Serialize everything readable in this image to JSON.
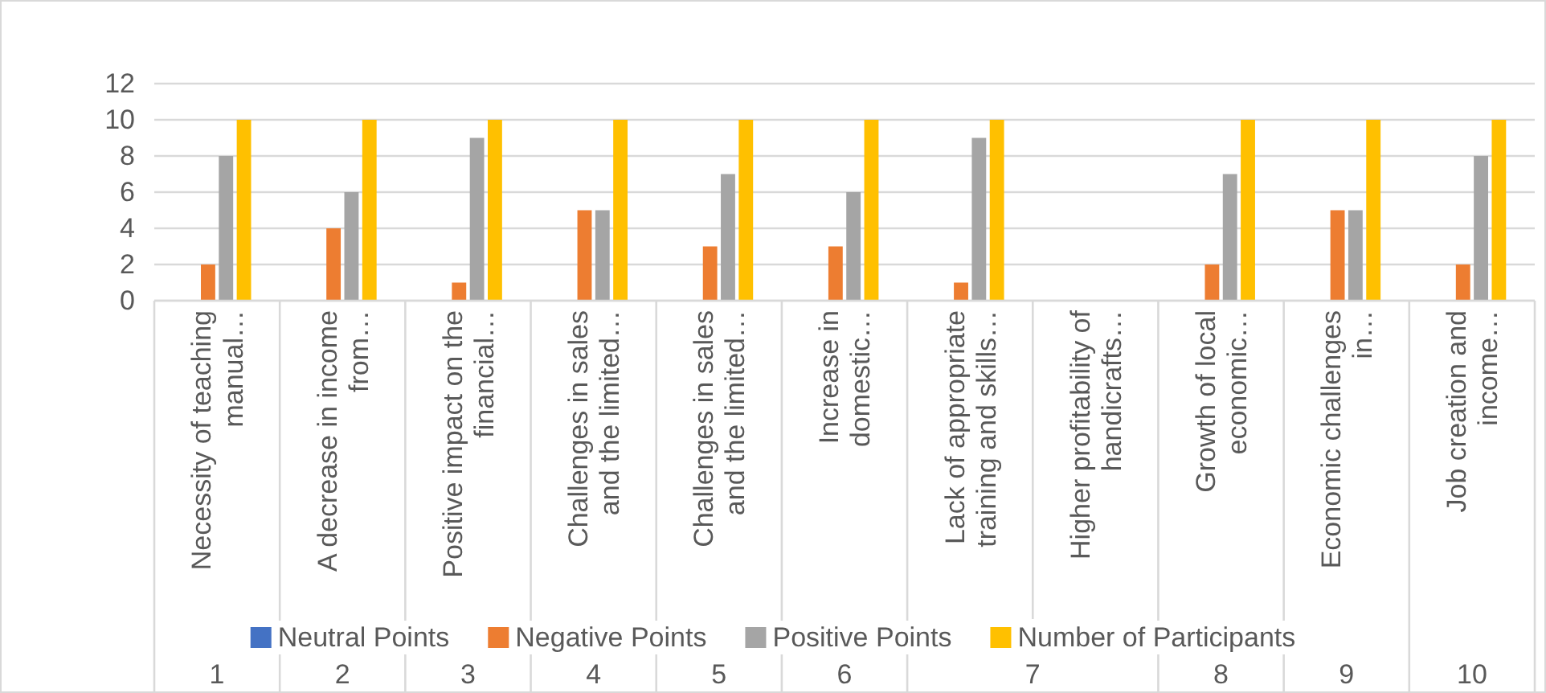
{
  "chart_data": {
    "type": "bar",
    "categories": [
      "Necessity of teaching manual…",
      "A decrease in income from…",
      "Positive impact on the financial…",
      "Challenges in sales and the limited…",
      "Challenges in sales and the limited…",
      "Increase in domestic…",
      "Lack of appropriate training and skills…",
      "Higher profitability of handicrafts…",
      "Growth of local economic…",
      "Economic challenges in…",
      "Job creation and income…"
    ],
    "series": [
      {
        "name": "Neutral Points",
        "color": "#4472c4",
        "values": [
          0,
          0,
          0,
          0,
          0,
          0,
          0,
          null,
          0,
          0,
          0
        ]
      },
      {
        "name": "Negative Points",
        "color": "#ed7d31",
        "values": [
          2,
          4,
          1,
          5,
          3,
          3,
          1,
          null,
          2,
          5,
          2
        ]
      },
      {
        "name": "Positive Points",
        "color": "#a5a5a5",
        "values": [
          8,
          6,
          9,
          5,
          7,
          6,
          9,
          null,
          7,
          5,
          8
        ]
      },
      {
        "name": "Number of Participants",
        "color": "#ffc000",
        "values": [
          10,
          10,
          10,
          10,
          10,
          10,
          10,
          null,
          10,
          10,
          10
        ]
      }
    ],
    "ylim": [
      0,
      12
    ],
    "yticks": [
      0,
      2,
      4,
      6,
      8,
      10,
      12
    ],
    "grid": "y",
    "legend": "bottom",
    "annotations": [
      "1",
      "2",
      "3",
      "4",
      "5",
      "6",
      "7",
      "8",
      "9",
      "10"
    ]
  }
}
